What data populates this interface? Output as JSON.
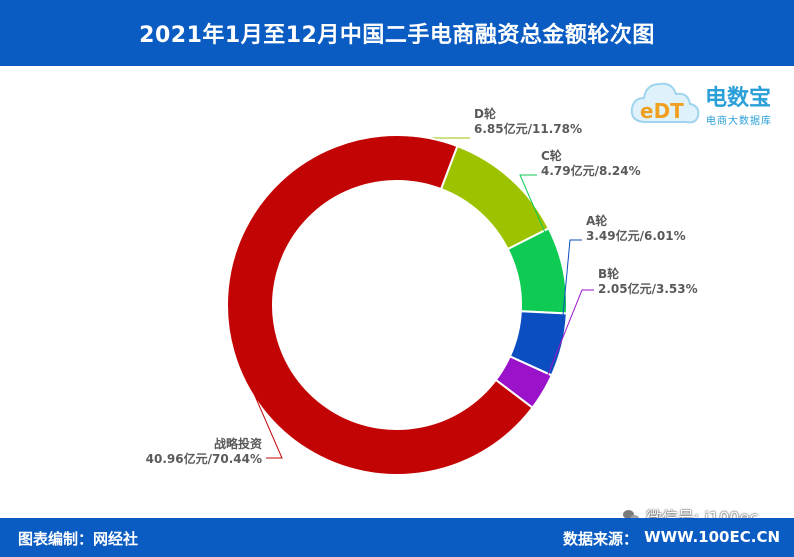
{
  "header": {
    "title": "2021年1月至12月中国二手电商融资总金额轮次图"
  },
  "logo": {
    "text": "电数宝",
    "subtitle": "电商大数据库",
    "mark": "eDT"
  },
  "footer": {
    "credit": "图表编制：网经社",
    "source_label": "数据来源：",
    "source_site": "WWW.100EC.CN"
  },
  "watermark": {
    "text": "微信号: i100ec"
  },
  "chart_data": {
    "type": "pie",
    "donut": true,
    "slices": [
      {
        "name": "D轮",
        "value": 6.85,
        "label": "6.85亿元/11.78%",
        "color": "#9dc300"
      },
      {
        "name": "C轮",
        "value": 4.79,
        "label": "4.79亿元/8.24%",
        "color": "#0fcb54"
      },
      {
        "name": "A轮",
        "value": 3.49,
        "label": "3.49亿元/6.01%",
        "color": "#0b4ec2"
      },
      {
        "name": "B轮",
        "value": 2.05,
        "label": "2.05亿元/3.53%",
        "color": "#9a12c9"
      },
      {
        "name": "战略投资",
        "value": 40.96,
        "label": "40.96亿元/70.44%",
        "color": "#c30404"
      }
    ]
  }
}
